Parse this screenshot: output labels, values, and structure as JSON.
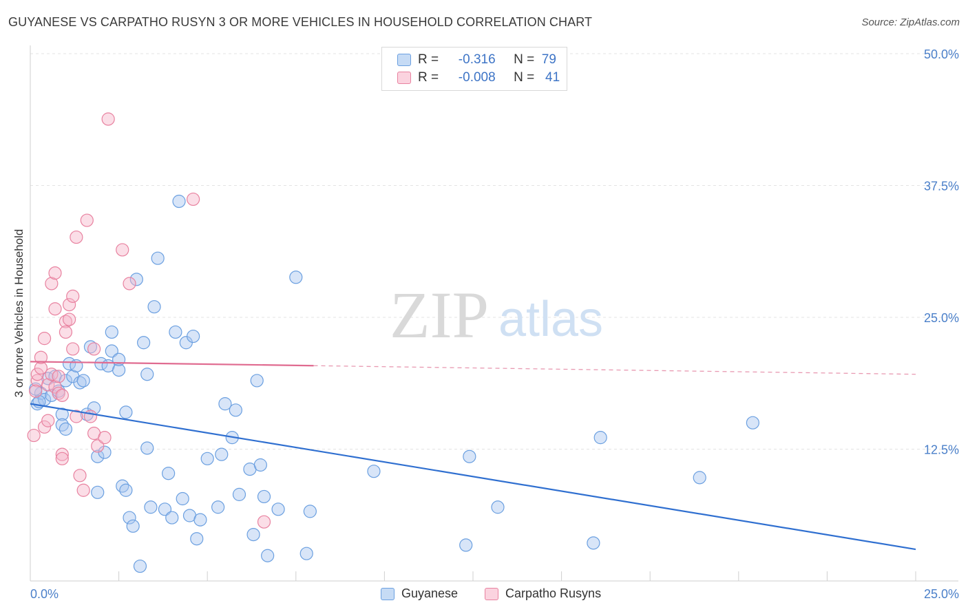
{
  "title": "GUYANESE VS CARPATHO RUSYN 3 OR MORE VEHICLES IN HOUSEHOLD CORRELATION CHART",
  "source": "Source: ZipAtlas.com",
  "watermark": {
    "zip": "ZIP",
    "atlas": "atlas"
  },
  "legend_top": {
    "rows": [
      {
        "r_label": "R =",
        "r_value": "-0.316",
        "n_label": "N =",
        "n_value": "79",
        "color": "#a9c6ef"
      },
      {
        "r_label": "R =",
        "r_value": "-0.008",
        "n_label": "N =",
        "n_value": "41",
        "color": "#f6b6c9"
      }
    ]
  },
  "chart_data": {
    "type": "scatter",
    "title": "GUYANESE VS CARPATHO RUSYN 3 OR MORE VEHICLES IN HOUSEHOLD CORRELATION CHART",
    "xlabel": "",
    "ylabel": "3 or more Vehicles in Household",
    "xlim": [
      0,
      25
    ],
    "ylim": [
      0,
      50
    ],
    "x_tick_labels": [
      "0.0%",
      "25.0%"
    ],
    "y_tick_labels": [
      "12.5%",
      "25.0%",
      "37.5%",
      "50.0%"
    ],
    "y_ticks": [
      12.5,
      25.0,
      37.5,
      50.0
    ],
    "grid": true,
    "legend_position": "bottom",
    "series": [
      {
        "name": "Guyanese",
        "color": "#6a9fe0",
        "fill": "#a9c6ef",
        "trend": {
          "x0": 0.0,
          "y0": 16.8,
          "x1": 25.0,
          "y1": 3.0,
          "dashed_from": null
        },
        "points": [
          [
            0.2,
            16.8
          ],
          [
            0.3,
            17.8
          ],
          [
            0.4,
            17.2
          ],
          [
            0.5,
            19.2
          ],
          [
            0.6,
            17.6
          ],
          [
            0.7,
            19.4
          ],
          [
            0.8,
            18.0
          ],
          [
            0.9,
            15.8
          ],
          [
            0.9,
            14.8
          ],
          [
            1.0,
            19.0
          ],
          [
            1.0,
            14.4
          ],
          [
            1.1,
            20.6
          ],
          [
            1.2,
            19.4
          ],
          [
            1.3,
            20.4
          ],
          [
            1.4,
            18.8
          ],
          [
            1.5,
            19.0
          ],
          [
            1.6,
            15.8
          ],
          [
            1.7,
            22.2
          ],
          [
            1.8,
            16.4
          ],
          [
            1.9,
            11.8
          ],
          [
            1.9,
            8.4
          ],
          [
            2.0,
            20.6
          ],
          [
            2.1,
            12.2
          ],
          [
            2.2,
            20.4
          ],
          [
            2.3,
            21.8
          ],
          [
            2.3,
            23.6
          ],
          [
            2.5,
            20.0
          ],
          [
            2.5,
            21.0
          ],
          [
            2.6,
            9.0
          ],
          [
            2.7,
            8.6
          ],
          [
            2.7,
            16.0
          ],
          [
            2.8,
            6.0
          ],
          [
            2.9,
            5.2
          ],
          [
            3.0,
            28.6
          ],
          [
            3.1,
            1.4
          ],
          [
            3.2,
            22.6
          ],
          [
            3.3,
            19.6
          ],
          [
            3.3,
            12.6
          ],
          [
            3.4,
            7.0
          ],
          [
            3.5,
            26.0
          ],
          [
            3.6,
            30.6
          ],
          [
            3.8,
            6.8
          ],
          [
            3.9,
            10.2
          ],
          [
            4.0,
            6.0
          ],
          [
            4.1,
            23.6
          ],
          [
            4.2,
            36.0
          ],
          [
            4.3,
            7.8
          ],
          [
            4.4,
            22.6
          ],
          [
            4.5,
            6.2
          ],
          [
            4.6,
            23.2
          ],
          [
            4.7,
            4.0
          ],
          [
            4.8,
            5.8
          ],
          [
            5.0,
            11.6
          ],
          [
            5.3,
            7.0
          ],
          [
            5.4,
            12.0
          ],
          [
            5.5,
            16.8
          ],
          [
            5.7,
            13.6
          ],
          [
            5.8,
            16.2
          ],
          [
            5.9,
            8.2
          ],
          [
            6.2,
            10.6
          ],
          [
            6.3,
            4.4
          ],
          [
            6.4,
            19.0
          ],
          [
            6.5,
            11.0
          ],
          [
            6.6,
            8.0
          ],
          [
            6.7,
            2.4
          ],
          [
            7.0,
            6.8
          ],
          [
            7.5,
            28.8
          ],
          [
            7.8,
            2.6
          ],
          [
            7.9,
            6.6
          ],
          [
            9.7,
            10.4
          ],
          [
            12.3,
            3.4
          ],
          [
            12.4,
            11.8
          ],
          [
            13.2,
            7.0
          ],
          [
            15.9,
            3.6
          ],
          [
            16.1,
            13.6
          ],
          [
            18.9,
            9.8
          ],
          [
            20.4,
            15.0
          ],
          [
            0.15,
            18.2
          ],
          [
            0.25,
            17.0
          ]
        ]
      },
      {
        "name": "Carpatho Rusyns",
        "color": "#e8819f",
        "fill": "#f6b6c9",
        "trend": {
          "x0": 0.0,
          "y0": 20.8,
          "x1": 25.0,
          "y1": 19.6,
          "dashed_from": 8.0
        },
        "points": [
          [
            0.1,
            13.8
          ],
          [
            0.2,
            19.0
          ],
          [
            0.2,
            19.6
          ],
          [
            0.3,
            20.2
          ],
          [
            0.3,
            21.2
          ],
          [
            0.4,
            23.0
          ],
          [
            0.4,
            14.6
          ],
          [
            0.5,
            18.6
          ],
          [
            0.5,
            15.2
          ],
          [
            0.6,
            19.6
          ],
          [
            0.6,
            28.2
          ],
          [
            0.7,
            29.2
          ],
          [
            0.7,
            25.8
          ],
          [
            0.7,
            18.4
          ],
          [
            0.8,
            19.4
          ],
          [
            0.8,
            17.8
          ],
          [
            0.9,
            12.0
          ],
          [
            0.9,
            11.6
          ],
          [
            0.9,
            17.6
          ],
          [
            1.0,
            24.6
          ],
          [
            1.0,
            23.6
          ],
          [
            1.1,
            26.2
          ],
          [
            1.1,
            24.8
          ],
          [
            1.2,
            27.0
          ],
          [
            1.2,
            22.0
          ],
          [
            1.3,
            32.6
          ],
          [
            1.3,
            15.6
          ],
          [
            1.4,
            10.0
          ],
          [
            1.5,
            8.6
          ],
          [
            1.6,
            34.2
          ],
          [
            1.7,
            15.6
          ],
          [
            1.8,
            22.0
          ],
          [
            1.8,
            14.0
          ],
          [
            1.9,
            12.8
          ],
          [
            2.1,
            13.6
          ],
          [
            2.2,
            43.8
          ],
          [
            2.6,
            31.4
          ],
          [
            2.8,
            28.2
          ],
          [
            4.6,
            36.2
          ],
          [
            6.6,
            5.6
          ],
          [
            0.15,
            18.0
          ]
        ]
      }
    ]
  },
  "bottom_legend": [
    {
      "label": "Guyanese",
      "color": "#a9c6ef"
    },
    {
      "label": "Carpatho Rusyns",
      "color": "#f6b6c9"
    }
  ]
}
